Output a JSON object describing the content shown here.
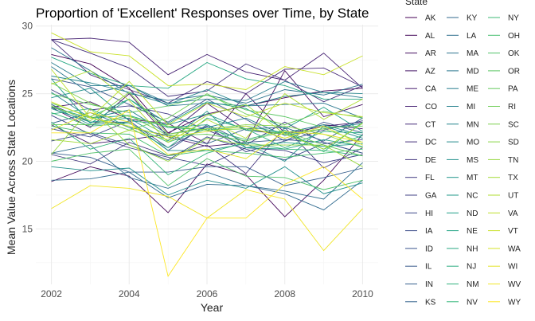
{
  "chart_data": {
    "type": "line",
    "title": "Proportion of 'Excellent' Responses over Time, by State",
    "xlabel": "Year",
    "ylabel": "Mean Value Across State Locations",
    "legend_title": "State",
    "legend_placement": "right",
    "grid": true,
    "xlim": [
      2001.6,
      2010.4
    ],
    "ylim": [
      10.9,
      30.1
    ],
    "x_ticks": [
      2002,
      2004,
      2006,
      2008,
      2010
    ],
    "y_ticks": [
      15,
      20,
      25,
      30
    ],
    "color_scale": "viridis",
    "x": [
      2002,
      2003,
      2004,
      2005,
      2006,
      2007,
      2008,
      2009,
      2010
    ],
    "series": [
      {
        "name": "AK",
        "values": [
          27.9,
          27.2,
          25.4,
          22.1,
          23.5,
          24.1,
          24.7,
          25.2,
          25.4
        ]
      },
      {
        "name": "AL",
        "values": [
          18.5,
          19.6,
          18.9,
          16.2,
          19.8,
          19.0,
          15.9,
          18.6,
          22.0
        ]
      },
      {
        "name": "AR",
        "values": [
          24.0,
          22.5,
          25.0,
          21.8,
          21.1,
          21.4,
          26.7,
          23.3,
          24.2
        ]
      },
      {
        "name": "AZ",
        "values": [
          24.0,
          24.4,
          23.1,
          22.8,
          21.3,
          25.0,
          22.1,
          22.7,
          22.4
        ]
      },
      {
        "name": "CA",
        "values": [
          22.7,
          21.3,
          21.6,
          22.0,
          24.3,
          22.3,
          22.0,
          22.6,
          22.9
        ]
      },
      {
        "name": "CO",
        "values": [
          29.0,
          29.1,
          28.8,
          26.4,
          27.9,
          26.6,
          26.0,
          28.0,
          25.4
        ]
      },
      {
        "name": "CT",
        "values": [
          29.0,
          26.4,
          25.3,
          24.3,
          25.9,
          25.0,
          26.8,
          26.9,
          25.5
        ]
      },
      {
        "name": "DC",
        "values": [
          29.0,
          28.0,
          26.9,
          24.8,
          25.2,
          27.2,
          26.0,
          24.4,
          25.6
        ]
      },
      {
        "name": "DE",
        "values": [
          20.5,
          19.8,
          21.4,
          20.4,
          21.2,
          19.1,
          22.5,
          19.5,
          21.0
        ]
      },
      {
        "name": "FL",
        "values": [
          25.3,
          23.8,
          24.1,
          23.5,
          22.3,
          21.2,
          22.9,
          21.4,
          20.6
        ]
      },
      {
        "name": "GA",
        "values": [
          23.4,
          22.0,
          21.0,
          20.3,
          19.7,
          21.0,
          20.8,
          19.9,
          20.5
        ]
      },
      {
        "name": "HI",
        "values": [
          22.4,
          21.8,
          23.0,
          21.0,
          22.6,
          20.7,
          21.5,
          22.3,
          23.0
        ]
      },
      {
        "name": "IA",
        "values": [
          21.5,
          22.1,
          21.2,
          20.1,
          21.8,
          20.9,
          20.1,
          21.3,
          21.6
        ]
      },
      {
        "name": "ID",
        "values": [
          26.1,
          25.5,
          24.2,
          22.9,
          24.6,
          23.1,
          21.5,
          22.9,
          22.1
        ]
      },
      {
        "name": "IL",
        "values": [
          24.2,
          22.9,
          22.9,
          20.8,
          22.7,
          21.4,
          21.6,
          21.4,
          20.6
        ]
      },
      {
        "name": "IN",
        "values": [
          20.6,
          20.3,
          19.2,
          19.2,
          19.6,
          19.6,
          18.2,
          18.8,
          19.5
        ]
      },
      {
        "name": "KS",
        "values": [
          22.8,
          23.6,
          22.5,
          21.9,
          21.3,
          22.4,
          22.5,
          21.5,
          23.2
        ]
      },
      {
        "name": "KY",
        "values": [
          18.6,
          18.7,
          19.2,
          17.3,
          18.3,
          18.2,
          17.6,
          16.4,
          18.6
        ]
      },
      {
        "name": "LA",
        "values": [
          20.6,
          21.2,
          18.8,
          18.0,
          19.2,
          18.2,
          17.8,
          17.2,
          19.9
        ]
      },
      {
        "name": "MA",
        "values": [
          28.4,
          26.7,
          25.0,
          24.5,
          24.9,
          24.3,
          25.3,
          24.9,
          25.7
        ]
      },
      {
        "name": "MD",
        "values": [
          27.0,
          25.0,
          25.6,
          24.1,
          24.3,
          24.1,
          24.2,
          24.3,
          23.2
        ]
      },
      {
        "name": "ME",
        "values": [
          27.3,
          25.6,
          25.6,
          24.3,
          24.6,
          24.5,
          25.9,
          25.1,
          24.7
        ]
      },
      {
        "name": "MI",
        "values": [
          25.1,
          23.2,
          23.8,
          22.0,
          22.5,
          23.2,
          21.9,
          22.4,
          22.8
        ]
      },
      {
        "name": "MN",
        "values": [
          26.3,
          25.8,
          25.1,
          24.2,
          25.3,
          24.1,
          24.8,
          25.1,
          25.0
        ]
      },
      {
        "name": "MO",
        "values": [
          24.1,
          22.7,
          22.9,
          20.8,
          20.8,
          21.3,
          20.0,
          22.6,
          21.7
        ]
      },
      {
        "name": "MS",
        "values": [
          19.6,
          19.3,
          19.5,
          17.5,
          18.6,
          18.0,
          19.6,
          17.6,
          18.4
        ]
      },
      {
        "name": "MT",
        "values": [
          24.7,
          25.4,
          23.0,
          22.7,
          23.5,
          22.3,
          22.1,
          22.7,
          21.9
        ]
      },
      {
        "name": "NC",
        "values": [
          23.9,
          22.9,
          23.2,
          21.5,
          23.7,
          21.0,
          21.4,
          21.1,
          21.3
        ]
      },
      {
        "name": "ND",
        "values": [
          26.1,
          22.8,
          24.6,
          22.8,
          24.4,
          23.9,
          22.4,
          24.0,
          22.2
        ]
      },
      {
        "name": "NE",
        "values": [
          24.0,
          23.2,
          23.4,
          22.5,
          22.7,
          21.0,
          20.9,
          21.6,
          21.1
        ]
      },
      {
        "name": "NH",
        "values": [
          27.7,
          26.5,
          25.6,
          25.4,
          27.3,
          26.1,
          25.6,
          24.6,
          24.6
        ]
      },
      {
        "name": "NJ",
        "values": [
          23.5,
          23.9,
          22.5,
          21.0,
          23.2,
          22.4,
          21.0,
          22.2,
          22.1
        ]
      },
      {
        "name": "NM",
        "values": [
          24.3,
          23.3,
          24.6,
          22.5,
          22.3,
          22.6,
          22.1,
          20.9,
          21.9
        ]
      },
      {
        "name": "NV",
        "values": [
          22.9,
          20.9,
          21.7,
          19.0,
          20.6,
          21.4,
          20.9,
          20.8,
          20.4
        ]
      },
      {
        "name": "NY",
        "values": [
          23.6,
          22.6,
          22.8,
          21.4,
          22.4,
          21.6,
          22.3,
          20.7,
          22.9
        ]
      },
      {
        "name": "OH",
        "values": [
          22.6,
          22.1,
          22.0,
          20.4,
          20.8,
          20.6,
          20.3,
          20.6,
          20.9
        ]
      },
      {
        "name": "OK",
        "values": [
          20.0,
          20.6,
          20.9,
          18.2,
          20.2,
          18.9,
          18.8,
          17.9,
          18.6
        ]
      },
      {
        "name": "OR",
        "values": [
          25.0,
          24.2,
          23.6,
          24.1,
          24.9,
          23.8,
          23.3,
          22.5,
          22.6
        ]
      },
      {
        "name": "PA",
        "values": [
          22.7,
          22.7,
          23.4,
          21.9,
          22.0,
          21.5,
          22.2,
          21.2,
          20.4
        ]
      },
      {
        "name": "RI",
        "values": [
          24.3,
          23.3,
          22.3,
          23.2,
          25.0,
          23.5,
          22.7,
          23.7,
          23.2
        ]
      },
      {
        "name": "SC",
        "values": [
          25.8,
          24.3,
          23.3,
          22.6,
          22.3,
          22.4,
          22.0,
          22.4,
          21.4
        ]
      },
      {
        "name": "SD",
        "values": [
          24.1,
          23.0,
          25.1,
          22.0,
          22.4,
          22.7,
          22.6,
          22.0,
          21.0
        ]
      },
      {
        "name": "TN",
        "values": [
          20.5,
          23.9,
          21.2,
          20.0,
          21.7,
          21.2,
          21.2,
          21.2,
          19.6
        ]
      },
      {
        "name": "TX",
        "values": [
          21.6,
          21.3,
          22.3,
          21.6,
          23.4,
          24.2,
          22.0,
          20.9,
          22.8
        ]
      },
      {
        "name": "UT",
        "values": [
          25.7,
          26.7,
          24.5,
          21.4,
          23.1,
          21.7,
          25.0,
          23.1,
          24.6
        ]
      },
      {
        "name": "VA",
        "values": [
          26.8,
          23.2,
          25.9,
          22.7,
          24.3,
          23.3,
          24.3,
          23.6,
          23.3
        ]
      },
      {
        "name": "VT",
        "values": [
          29.5,
          28.1,
          27.8,
          25.6,
          25.7,
          25.3,
          27.0,
          26.4,
          27.8
        ]
      },
      {
        "name": "WA",
        "values": [
          24.4,
          23.2,
          22.6,
          21.8,
          22.2,
          22.6,
          21.7,
          22.6,
          21.2
        ]
      },
      {
        "name": "WI",
        "values": [
          22.3,
          23.6,
          22.9,
          20.5,
          20.9,
          20.2,
          22.2,
          22.0,
          21.4
        ]
      },
      {
        "name": "WV",
        "values": [
          16.5,
          18.2,
          18.0,
          17.4,
          15.8,
          17.9,
          17.2,
          13.4,
          16.5
        ]
      },
      {
        "name": "WY",
        "values": [
          22.1,
          22.1,
          23.8,
          11.5,
          15.8,
          15.8,
          18.3,
          19.6,
          17.2
        ]
      }
    ]
  }
}
